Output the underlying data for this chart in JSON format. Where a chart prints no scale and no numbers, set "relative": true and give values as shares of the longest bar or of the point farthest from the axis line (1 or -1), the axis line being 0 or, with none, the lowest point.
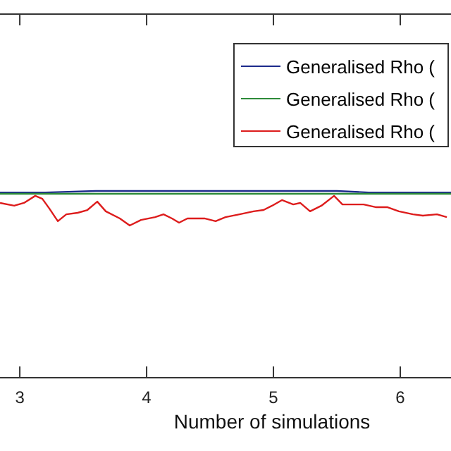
{
  "chart_data": {
    "type": "line",
    "relative": true,
    "xlabel": "Number of simulations",
    "xlim": [
      2.844,
      6.4
    ],
    "xticks": [
      3,
      4,
      5,
      6
    ],
    "legend": "top right",
    "grid": false,
    "line_style": "solid",
    "series": [
      {
        "name": "Generalised Rho (",
        "color": "#1c2a8c",
        "x": [
          2.844,
          3.2,
          3.6,
          4.2,
          5.0,
          5.5,
          5.75,
          6.0,
          6.4
        ],
        "values": [
          0.992,
          0.992,
          1,
          1,
          1,
          1,
          0.992,
          0.992,
          0.992
        ]
      },
      {
        "name": "Generalised Rho (",
        "color": "#2e8b3a",
        "x": [
          2.844,
          3.3,
          3.8,
          4.4,
          5.0,
          5.6,
          6.0,
          6.4
        ],
        "values": [
          0.985,
          0.985,
          0.985,
          0.985,
          0.985,
          0.985,
          0.985,
          0.985
        ]
      },
      {
        "name": "Generalised Rho (",
        "color": "#dd1c1c",
        "x": [
          2.844,
          2.956,
          3.033,
          3.122,
          3.178,
          3.233,
          3.3,
          3.367,
          3.456,
          3.533,
          3.611,
          3.678,
          3.789,
          3.867,
          3.956,
          4.067,
          4.133,
          4.2,
          4.256,
          4.322,
          4.456,
          4.544,
          4.622,
          4.733,
          4.844,
          4.922,
          4.989,
          5.067,
          5.156,
          5.211,
          5.289,
          5.378,
          5.478,
          5.544,
          5.622,
          5.711,
          5.811,
          5.9,
          5.989,
          6.1,
          6.178,
          6.289,
          6.367
        ],
        "values": [
          0.936,
          0.921,
          0.936,
          0.974,
          0.958,
          0.906,
          0.838,
          0.875,
          0.883,
          0.898,
          0.943,
          0.891,
          0.853,
          0.815,
          0.845,
          0.86,
          0.875,
          0.853,
          0.83,
          0.853,
          0.853,
          0.838,
          0.86,
          0.875,
          0.891,
          0.898,
          0.921,
          0.951,
          0.928,
          0.936,
          0.891,
          0.921,
          0.974,
          0.928,
          0.928,
          0.928,
          0.913,
          0.913,
          0.891,
          0.875,
          0.868,
          0.875,
          0.86
        ]
      }
    ]
  }
}
